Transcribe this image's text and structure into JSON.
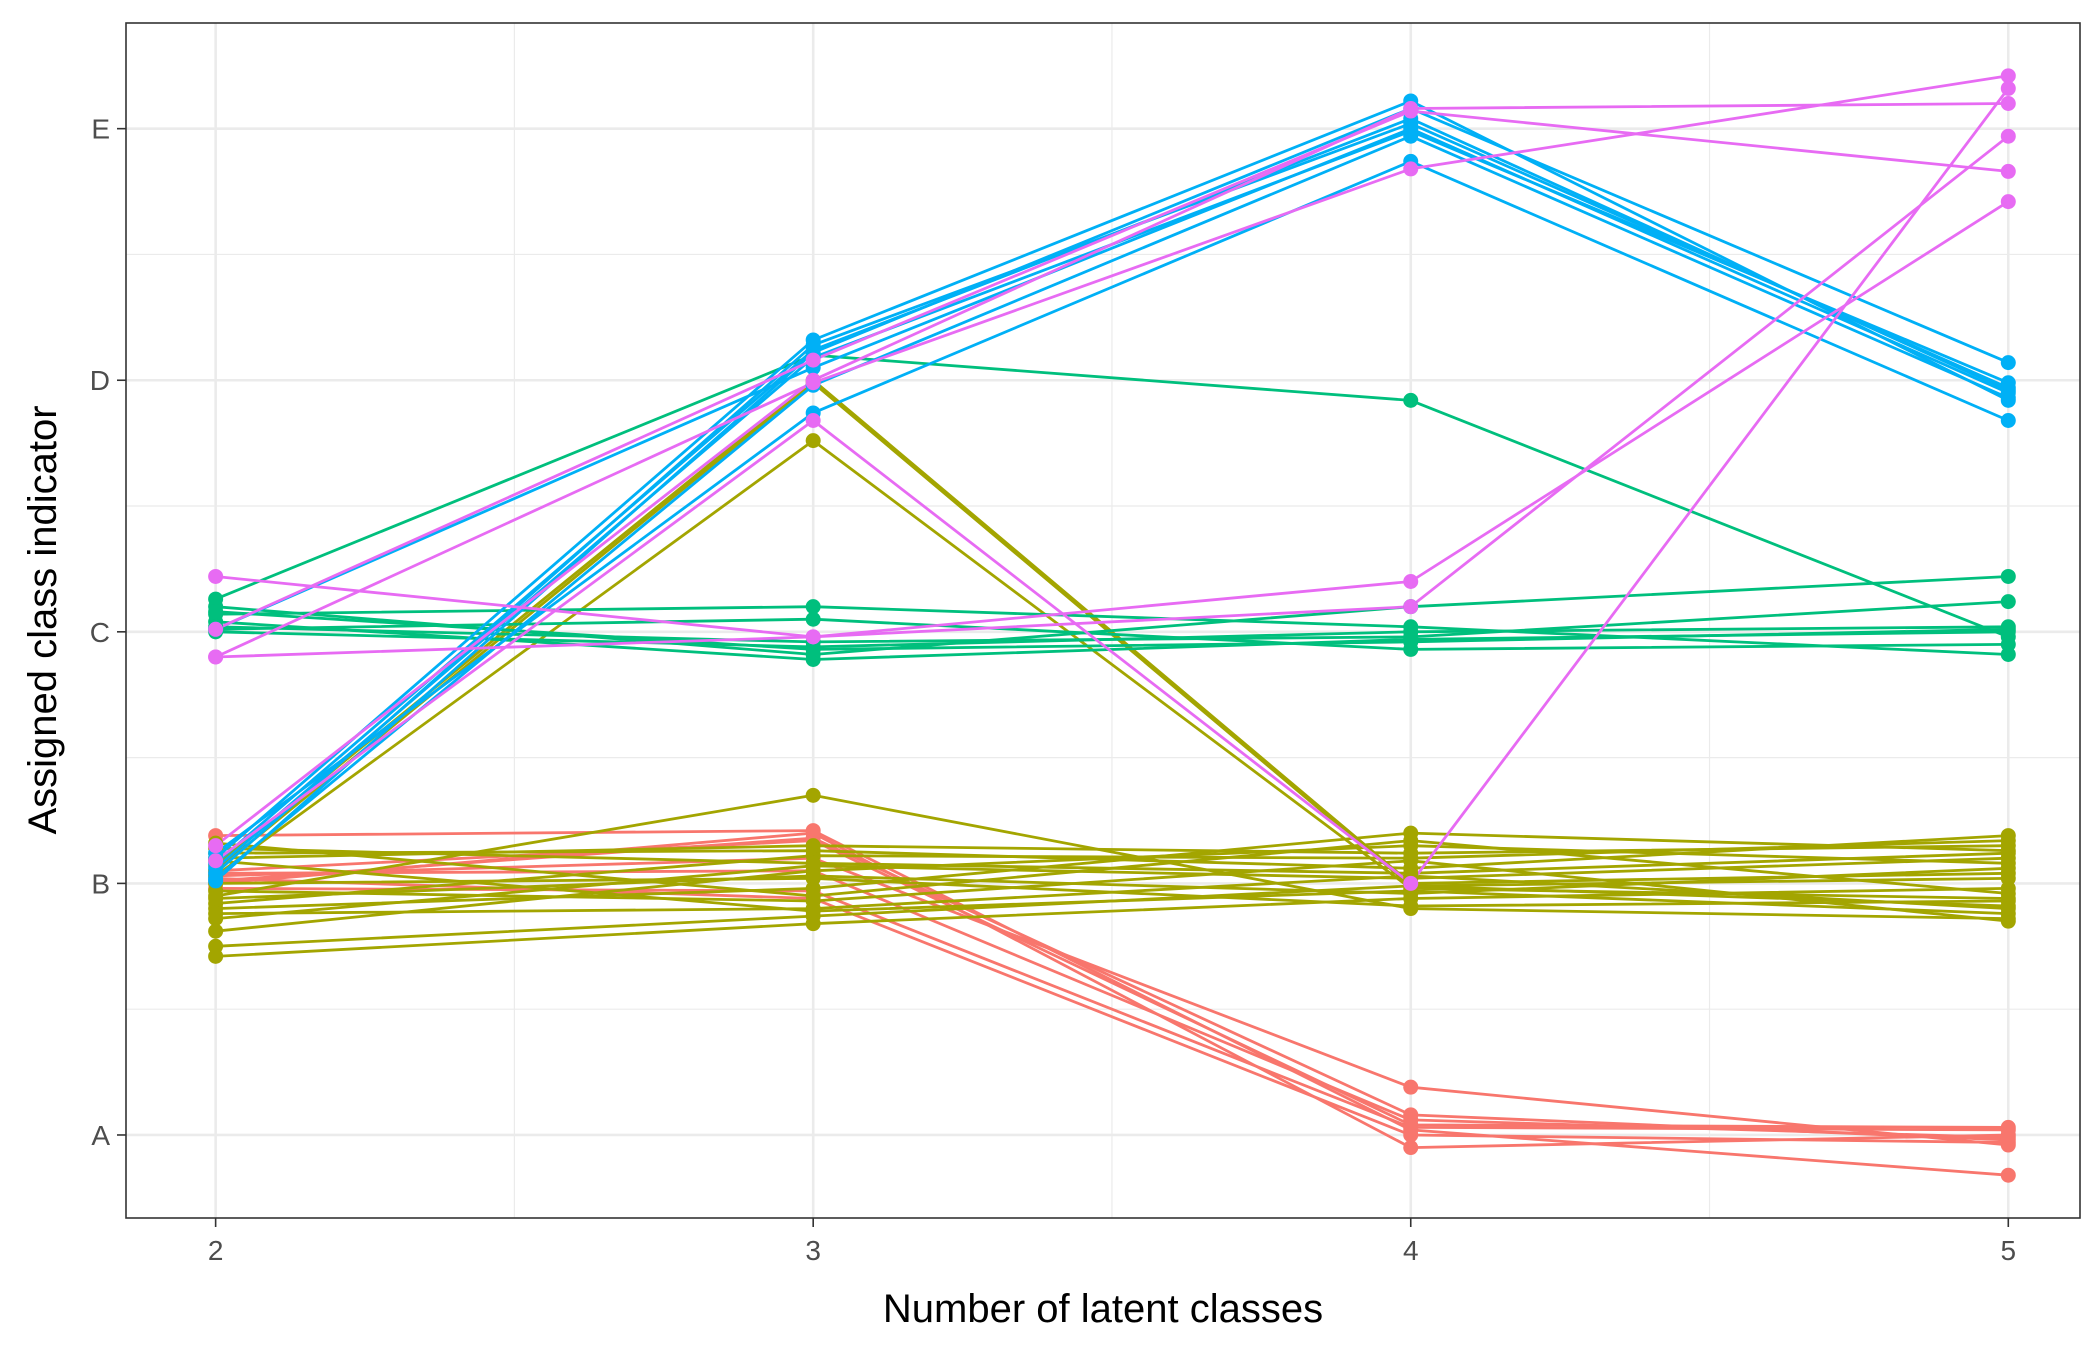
{
  "chart_data": {
    "type": "line",
    "title": "",
    "xlabel": "Number of latent classes",
    "ylabel": "Assigned class indicator",
    "x": [
      2,
      3,
      4,
      5
    ],
    "x_ticks": [
      "2",
      "3",
      "4",
      "5"
    ],
    "y_ticks": [
      "A",
      "B",
      "C",
      "D",
      "E"
    ],
    "xlim": [
      1.85,
      5.12
    ],
    "ylim": [
      0.67,
      5.42
    ],
    "grid": true,
    "legend": "none",
    "colors": {
      "A": "#F8766D",
      "B": "#A3A500",
      "C": "#00BF7D",
      "D": "#00B0F6",
      "E": "#E76BF3"
    },
    "series": [
      {
        "group": "A",
        "values": [
          2.02,
          1.94,
          1.0,
          0.97
        ]
      },
      {
        "group": "A",
        "values": [
          2.01,
          2.18,
          1.08,
          0.98
        ]
      },
      {
        "group": "A",
        "values": [
          2.05,
          2.17,
          1.04,
          1.03
        ]
      },
      {
        "group": "A",
        "values": [
          2.03,
          2.1,
          1.19,
          0.96
        ]
      },
      {
        "group": "A",
        "values": [
          2.0,
          2.2,
          0.95,
          1.0
        ]
      },
      {
        "group": "A",
        "values": [
          2.19,
          2.21,
          1.02,
          0.84
        ]
      },
      {
        "group": "A",
        "values": [
          2.04,
          2.05,
          1.06,
          0.99
        ]
      },
      {
        "group": "A",
        "values": [
          1.98,
          1.97,
          1.03,
          1.02
        ]
      },
      {
        "group": "B",
        "values": [
          2.07,
          4.0,
          2.0,
          2.04
        ]
      },
      {
        "group": "B",
        "values": [
          2.05,
          3.99,
          1.99,
          1.91
        ]
      },
      {
        "group": "B",
        "values": [
          2.03,
          3.76,
          1.98,
          1.94
        ]
      },
      {
        "group": "B",
        "values": [
          2.09,
          1.89,
          1.97,
          1.88
        ]
      },
      {
        "group": "B",
        "values": [
          1.95,
          2.35,
          1.9,
          1.86
        ]
      },
      {
        "group": "B",
        "values": [
          1.92,
          2.11,
          2.1,
          2.17
        ]
      },
      {
        "group": "B",
        "values": [
          1.9,
          1.98,
          2.2,
          2.13
        ]
      },
      {
        "group": "B",
        "values": [
          1.86,
          2.07,
          2.02,
          2.1
        ]
      },
      {
        "group": "B",
        "values": [
          1.81,
          2.05,
          2.15,
          2.08
        ]
      },
      {
        "group": "B",
        "values": [
          1.75,
          1.87,
          1.99,
          2.02
        ]
      },
      {
        "group": "B",
        "values": [
          1.71,
          1.84,
          1.94,
          1.98
        ]
      },
      {
        "group": "B",
        "values": [
          2.12,
          2.13,
          2.06,
          2.19
        ]
      },
      {
        "group": "B",
        "values": [
          2.14,
          2.08,
          2.04,
          2.12
        ]
      },
      {
        "group": "B",
        "values": [
          2.0,
          2.02,
          1.91,
          1.93
        ]
      },
      {
        "group": "B",
        "values": [
          1.97,
          1.93,
          2.09,
          1.85
        ]
      },
      {
        "group": "B",
        "values": [
          2.16,
          1.95,
          2.17,
          1.96
        ]
      },
      {
        "group": "B",
        "values": [
          1.94,
          2.03,
          1.96,
          2.06
        ]
      },
      {
        "group": "B",
        "values": [
          1.88,
          1.9,
          2.03,
          1.9
        ]
      },
      {
        "group": "B",
        "values": [
          2.1,
          2.15,
          2.12,
          2.15
        ]
      },
      {
        "group": "C",
        "values": [
          3.13,
          4.1,
          3.92,
          2.98
        ]
      },
      {
        "group": "C",
        "values": [
          3.07,
          3.1,
          3.02,
          2.91
        ]
      },
      {
        "group": "C",
        "values": [
          3.04,
          2.89,
          2.97,
          3.0
        ]
      },
      {
        "group": "C",
        "values": [
          3.1,
          2.91,
          3.1,
          3.22
        ]
      },
      {
        "group": "C",
        "values": [
          3.0,
          2.94,
          3.0,
          3.02
        ]
      },
      {
        "group": "C",
        "values": [
          3.01,
          3.05,
          2.93,
          2.95
        ]
      },
      {
        "group": "C",
        "values": [
          3.02,
          2.96,
          2.98,
          3.12
        ]
      },
      {
        "group": "C",
        "values": [
          3.08,
          2.93,
          2.96,
          3.01
        ]
      },
      {
        "group": "D",
        "values": [
          2.1,
          4.16,
          5.11,
          3.92
        ]
      },
      {
        "group": "D",
        "values": [
          2.08,
          4.12,
          5.04,
          3.96
        ]
      },
      {
        "group": "D",
        "values": [
          2.06,
          4.09,
          4.99,
          3.99
        ]
      },
      {
        "group": "D",
        "values": [
          2.04,
          4.14,
          5.02,
          3.97
        ]
      },
      {
        "group": "D",
        "values": [
          2.02,
          3.98,
          4.97,
          3.93
        ]
      },
      {
        "group": "D",
        "values": [
          2.12,
          3.87,
          4.87,
          3.84
        ]
      },
      {
        "group": "D",
        "values": [
          2.01,
          4.11,
          5.08,
          4.07
        ]
      },
      {
        "group": "D",
        "values": [
          3.01,
          4.05,
          5.0,
          3.95
        ]
      },
      {
        "group": "E",
        "values": [
          3.22,
          2.98,
          3.1,
          4.97
        ]
      },
      {
        "group": "E",
        "values": [
          2.9,
          2.98,
          3.2,
          4.71
        ]
      },
      {
        "group": "E",
        "values": [
          3.01,
          4.08,
          5.07,
          4.83
        ]
      },
      {
        "group": "E",
        "values": [
          2.9,
          3.99,
          4.84,
          5.21
        ]
      },
      {
        "group": "E",
        "values": [
          2.15,
          4.0,
          5.08,
          5.1
        ]
      },
      {
        "group": "E",
        "values": [
          2.09,
          3.84,
          2.0,
          5.16
        ]
      }
    ]
  }
}
